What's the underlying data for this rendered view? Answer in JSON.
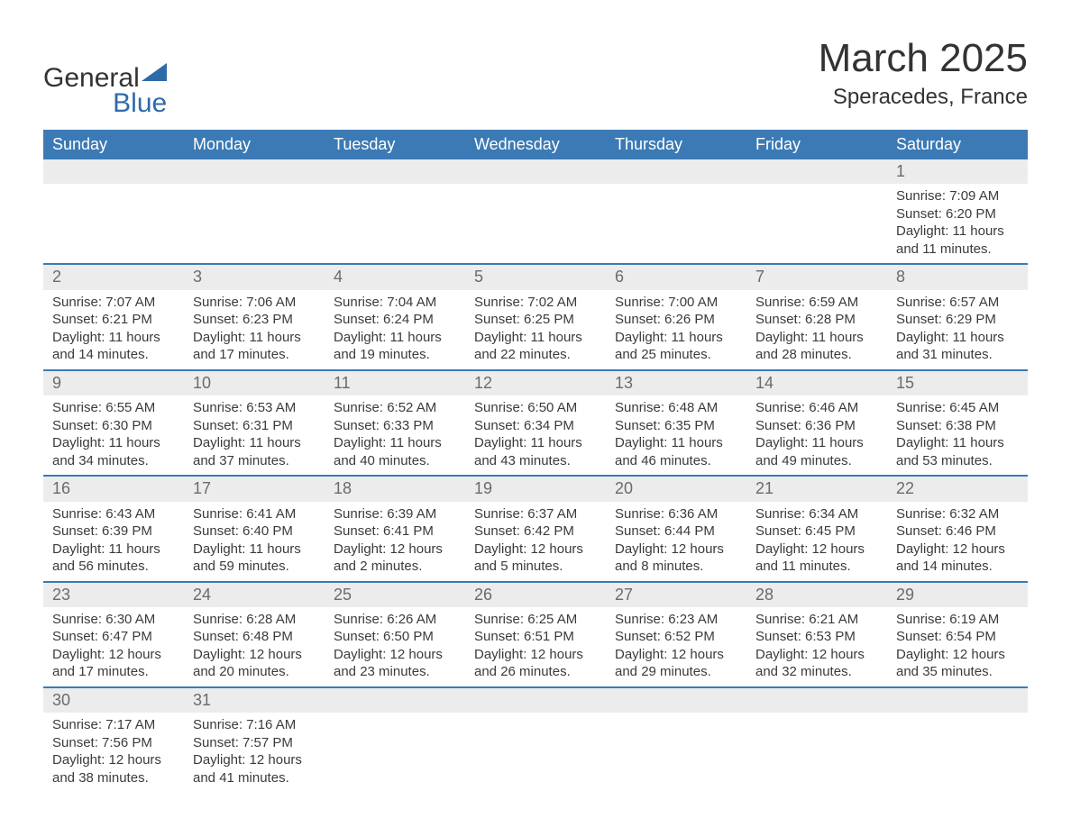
{
  "logo": {
    "text1": "General",
    "text2": "Blue",
    "triangle_color": "#2f6aa8"
  },
  "title": "March 2025",
  "subtitle": "Speracedes, France",
  "colors": {
    "header_bg": "#3c7ab5",
    "header_text": "#ffffff",
    "daynum_bg": "#ececec",
    "daynum_text": "#6b6b6b",
    "body_text": "#3b3b3b",
    "row_divider": "#3c7ab5",
    "page_bg": "#ffffff"
  },
  "typography": {
    "title_fontsize": 44,
    "subtitle_fontsize": 24,
    "header_fontsize": 18,
    "daynum_fontsize": 18,
    "detail_fontsize": 15,
    "font_family": "Arial, Helvetica, sans-serif"
  },
  "calendar": {
    "type": "table",
    "columns": [
      "Sunday",
      "Monday",
      "Tuesday",
      "Wednesday",
      "Thursday",
      "Friday",
      "Saturday"
    ],
    "weeks": [
      {
        "days": [
          null,
          null,
          null,
          null,
          null,
          null,
          {
            "n": "1",
            "sunrise": "Sunrise: 7:09 AM",
            "sunset": "Sunset: 6:20 PM",
            "dl1": "Daylight: 11 hours",
            "dl2": "and 11 minutes."
          }
        ]
      },
      {
        "days": [
          {
            "n": "2",
            "sunrise": "Sunrise: 7:07 AM",
            "sunset": "Sunset: 6:21 PM",
            "dl1": "Daylight: 11 hours",
            "dl2": "and 14 minutes."
          },
          {
            "n": "3",
            "sunrise": "Sunrise: 7:06 AM",
            "sunset": "Sunset: 6:23 PM",
            "dl1": "Daylight: 11 hours",
            "dl2": "and 17 minutes."
          },
          {
            "n": "4",
            "sunrise": "Sunrise: 7:04 AM",
            "sunset": "Sunset: 6:24 PM",
            "dl1": "Daylight: 11 hours",
            "dl2": "and 19 minutes."
          },
          {
            "n": "5",
            "sunrise": "Sunrise: 7:02 AM",
            "sunset": "Sunset: 6:25 PM",
            "dl1": "Daylight: 11 hours",
            "dl2": "and 22 minutes."
          },
          {
            "n": "6",
            "sunrise": "Sunrise: 7:00 AM",
            "sunset": "Sunset: 6:26 PM",
            "dl1": "Daylight: 11 hours",
            "dl2": "and 25 minutes."
          },
          {
            "n": "7",
            "sunrise": "Sunrise: 6:59 AM",
            "sunset": "Sunset: 6:28 PM",
            "dl1": "Daylight: 11 hours",
            "dl2": "and 28 minutes."
          },
          {
            "n": "8",
            "sunrise": "Sunrise: 6:57 AM",
            "sunset": "Sunset: 6:29 PM",
            "dl1": "Daylight: 11 hours",
            "dl2": "and 31 minutes."
          }
        ]
      },
      {
        "days": [
          {
            "n": "9",
            "sunrise": "Sunrise: 6:55 AM",
            "sunset": "Sunset: 6:30 PM",
            "dl1": "Daylight: 11 hours",
            "dl2": "and 34 minutes."
          },
          {
            "n": "10",
            "sunrise": "Sunrise: 6:53 AM",
            "sunset": "Sunset: 6:31 PM",
            "dl1": "Daylight: 11 hours",
            "dl2": "and 37 minutes."
          },
          {
            "n": "11",
            "sunrise": "Sunrise: 6:52 AM",
            "sunset": "Sunset: 6:33 PM",
            "dl1": "Daylight: 11 hours",
            "dl2": "and 40 minutes."
          },
          {
            "n": "12",
            "sunrise": "Sunrise: 6:50 AM",
            "sunset": "Sunset: 6:34 PM",
            "dl1": "Daylight: 11 hours",
            "dl2": "and 43 minutes."
          },
          {
            "n": "13",
            "sunrise": "Sunrise: 6:48 AM",
            "sunset": "Sunset: 6:35 PM",
            "dl1": "Daylight: 11 hours",
            "dl2": "and 46 minutes."
          },
          {
            "n": "14",
            "sunrise": "Sunrise: 6:46 AM",
            "sunset": "Sunset: 6:36 PM",
            "dl1": "Daylight: 11 hours",
            "dl2": "and 49 minutes."
          },
          {
            "n": "15",
            "sunrise": "Sunrise: 6:45 AM",
            "sunset": "Sunset: 6:38 PM",
            "dl1": "Daylight: 11 hours",
            "dl2": "and 53 minutes."
          }
        ]
      },
      {
        "days": [
          {
            "n": "16",
            "sunrise": "Sunrise: 6:43 AM",
            "sunset": "Sunset: 6:39 PM",
            "dl1": "Daylight: 11 hours",
            "dl2": "and 56 minutes."
          },
          {
            "n": "17",
            "sunrise": "Sunrise: 6:41 AM",
            "sunset": "Sunset: 6:40 PM",
            "dl1": "Daylight: 11 hours",
            "dl2": "and 59 minutes."
          },
          {
            "n": "18",
            "sunrise": "Sunrise: 6:39 AM",
            "sunset": "Sunset: 6:41 PM",
            "dl1": "Daylight: 12 hours",
            "dl2": "and 2 minutes."
          },
          {
            "n": "19",
            "sunrise": "Sunrise: 6:37 AM",
            "sunset": "Sunset: 6:42 PM",
            "dl1": "Daylight: 12 hours",
            "dl2": "and 5 minutes."
          },
          {
            "n": "20",
            "sunrise": "Sunrise: 6:36 AM",
            "sunset": "Sunset: 6:44 PM",
            "dl1": "Daylight: 12 hours",
            "dl2": "and 8 minutes."
          },
          {
            "n": "21",
            "sunrise": "Sunrise: 6:34 AM",
            "sunset": "Sunset: 6:45 PM",
            "dl1": "Daylight: 12 hours",
            "dl2": "and 11 minutes."
          },
          {
            "n": "22",
            "sunrise": "Sunrise: 6:32 AM",
            "sunset": "Sunset: 6:46 PM",
            "dl1": "Daylight: 12 hours",
            "dl2": "and 14 minutes."
          }
        ]
      },
      {
        "days": [
          {
            "n": "23",
            "sunrise": "Sunrise: 6:30 AM",
            "sunset": "Sunset: 6:47 PM",
            "dl1": "Daylight: 12 hours",
            "dl2": "and 17 minutes."
          },
          {
            "n": "24",
            "sunrise": "Sunrise: 6:28 AM",
            "sunset": "Sunset: 6:48 PM",
            "dl1": "Daylight: 12 hours",
            "dl2": "and 20 minutes."
          },
          {
            "n": "25",
            "sunrise": "Sunrise: 6:26 AM",
            "sunset": "Sunset: 6:50 PM",
            "dl1": "Daylight: 12 hours",
            "dl2": "and 23 minutes."
          },
          {
            "n": "26",
            "sunrise": "Sunrise: 6:25 AM",
            "sunset": "Sunset: 6:51 PM",
            "dl1": "Daylight: 12 hours",
            "dl2": "and 26 minutes."
          },
          {
            "n": "27",
            "sunrise": "Sunrise: 6:23 AM",
            "sunset": "Sunset: 6:52 PM",
            "dl1": "Daylight: 12 hours",
            "dl2": "and 29 minutes."
          },
          {
            "n": "28",
            "sunrise": "Sunrise: 6:21 AM",
            "sunset": "Sunset: 6:53 PM",
            "dl1": "Daylight: 12 hours",
            "dl2": "and 32 minutes."
          },
          {
            "n": "29",
            "sunrise": "Sunrise: 6:19 AM",
            "sunset": "Sunset: 6:54 PM",
            "dl1": "Daylight: 12 hours",
            "dl2": "and 35 minutes."
          }
        ]
      },
      {
        "days": [
          {
            "n": "30",
            "sunrise": "Sunrise: 7:17 AM",
            "sunset": "Sunset: 7:56 PM",
            "dl1": "Daylight: 12 hours",
            "dl2": "and 38 minutes."
          },
          {
            "n": "31",
            "sunrise": "Sunrise: 7:16 AM",
            "sunset": "Sunset: 7:57 PM",
            "dl1": "Daylight: 12 hours",
            "dl2": "and 41 minutes."
          },
          null,
          null,
          null,
          null,
          null
        ]
      }
    ]
  }
}
